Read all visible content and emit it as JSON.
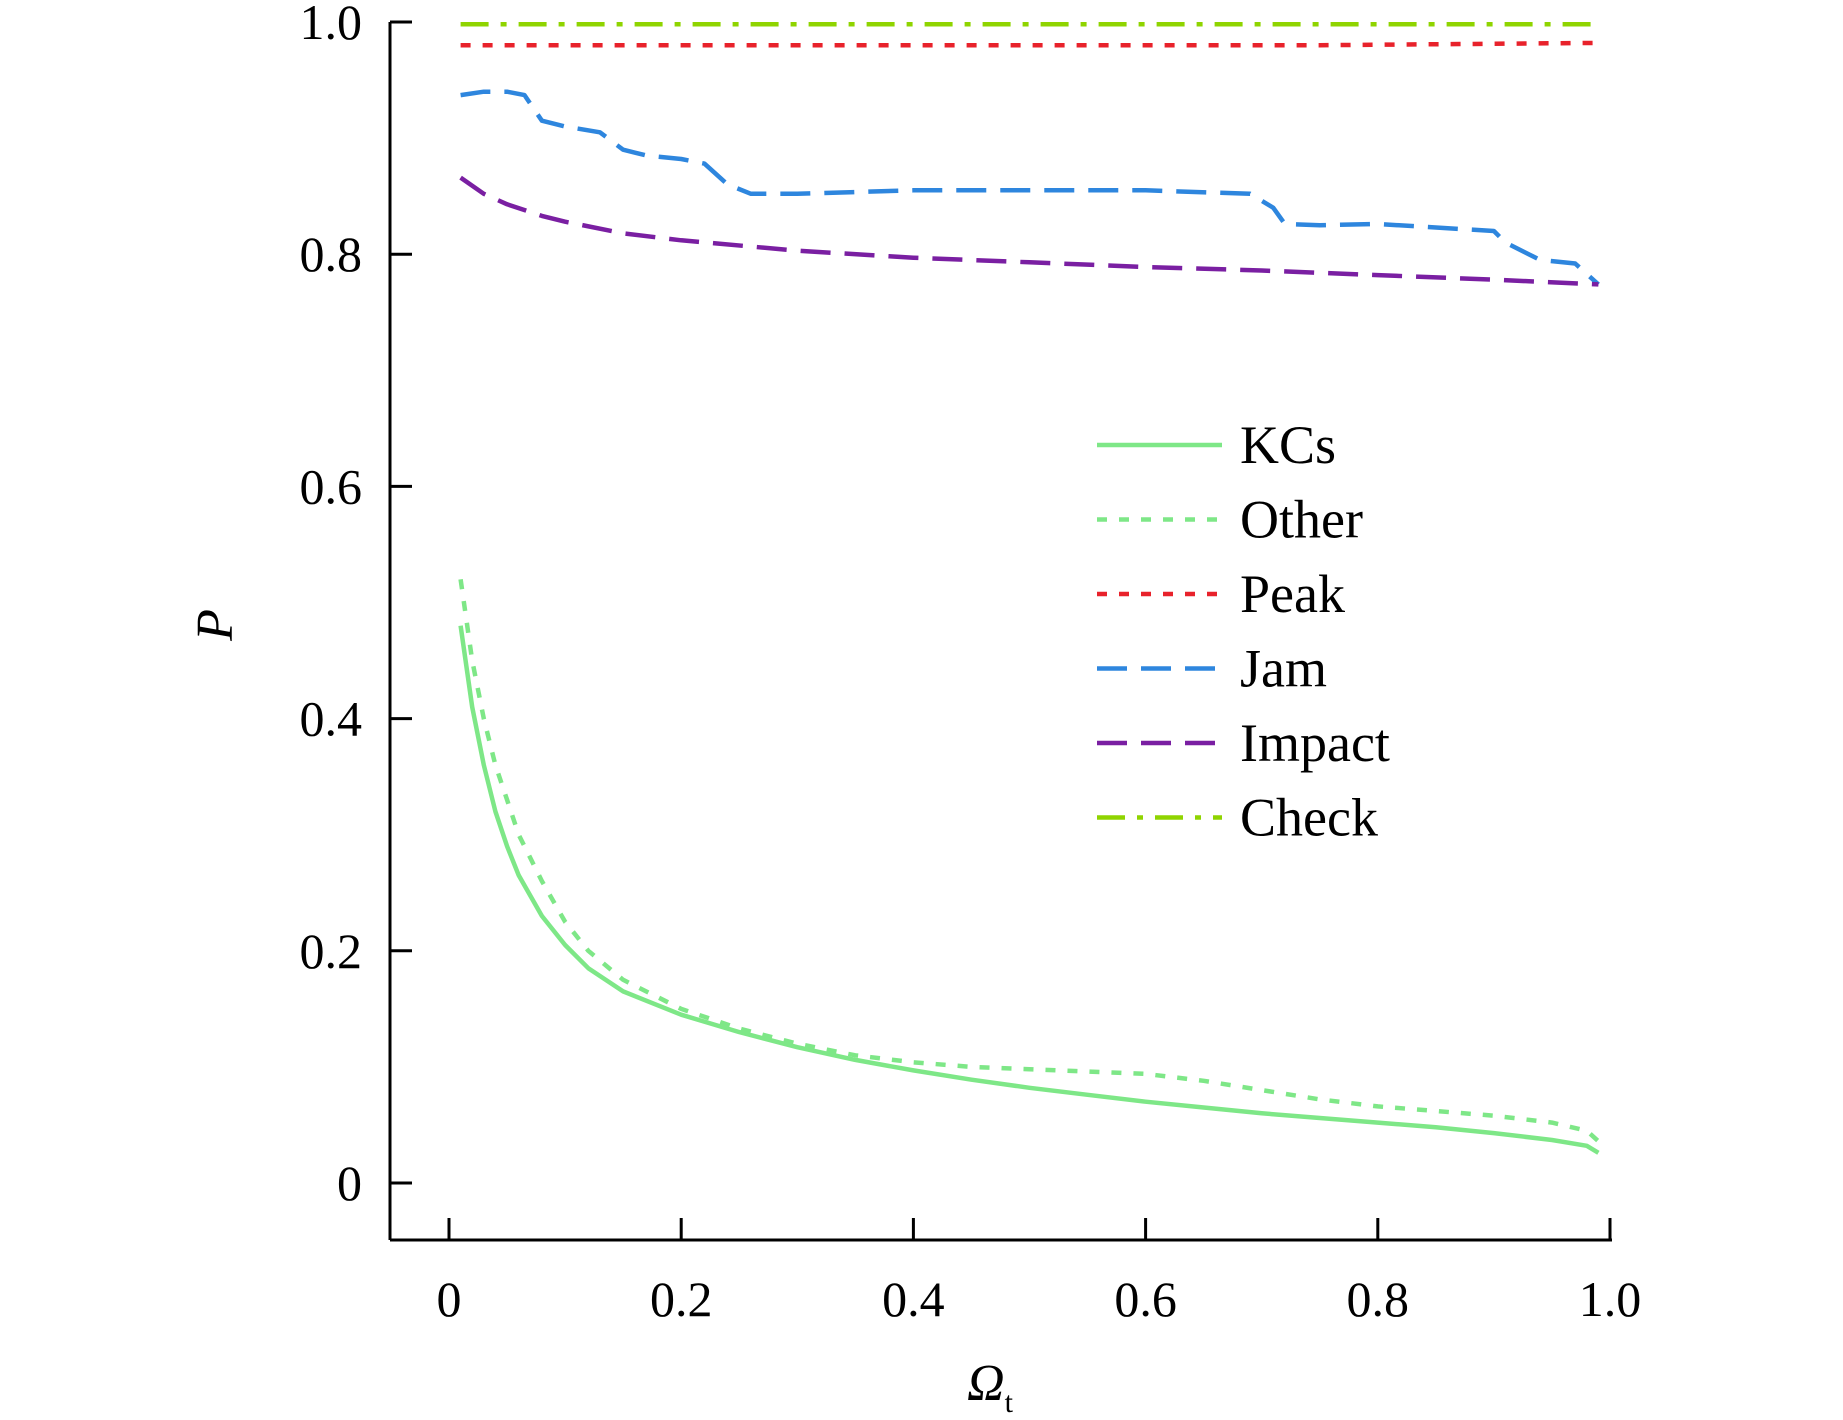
{
  "chart_data": {
    "type": "line",
    "title": "",
    "xlabel": "Ω",
    "xlabel_subscript": "t",
    "ylabel": "P",
    "xlim": [
      -0.05,
      1.0
    ],
    "ylim": [
      -0.05,
      1.0
    ],
    "x_ticks": [
      0,
      0.2,
      0.4,
      0.6,
      0.8,
      1.0
    ],
    "x_tick_labels": [
      "0",
      "0.2",
      "0.4",
      "0.6",
      "0.8",
      "1.0"
    ],
    "y_ticks": [
      0,
      0.2,
      0.4,
      0.6,
      0.8,
      1.0
    ],
    "y_tick_labels": [
      "0",
      "0.2",
      "0.4",
      "0.6",
      "0.8",
      "1.0"
    ],
    "grid": false,
    "legend_position": "center-right",
    "series": [
      {
        "name": "KCs",
        "color": "#7ee787",
        "style": "solid",
        "x": [
          0.01,
          0.02,
          0.03,
          0.04,
          0.05,
          0.06,
          0.08,
          0.1,
          0.12,
          0.15,
          0.2,
          0.25,
          0.3,
          0.35,
          0.4,
          0.45,
          0.5,
          0.55,
          0.6,
          0.65,
          0.7,
          0.75,
          0.8,
          0.85,
          0.9,
          0.95,
          0.98,
          0.99
        ],
        "y": [
          0.48,
          0.41,
          0.36,
          0.32,
          0.29,
          0.265,
          0.23,
          0.205,
          0.185,
          0.165,
          0.145,
          0.13,
          0.117,
          0.106,
          0.097,
          0.089,
          0.082,
          0.076,
          0.07,
          0.065,
          0.06,
          0.056,
          0.052,
          0.048,
          0.043,
          0.037,
          0.032,
          0.026
        ]
      },
      {
        "name": "Other",
        "color": "#7ee787",
        "style": "dotted",
        "x": [
          0.01,
          0.02,
          0.03,
          0.04,
          0.05,
          0.06,
          0.08,
          0.1,
          0.12,
          0.15,
          0.2,
          0.25,
          0.3,
          0.35,
          0.4,
          0.45,
          0.5,
          0.55,
          0.6,
          0.65,
          0.7,
          0.75,
          0.8,
          0.85,
          0.9,
          0.95,
          0.98,
          0.99
        ],
        "y": [
          0.52,
          0.45,
          0.4,
          0.36,
          0.33,
          0.3,
          0.26,
          0.225,
          0.2,
          0.175,
          0.15,
          0.133,
          0.12,
          0.11,
          0.104,
          0.1,
          0.098,
          0.096,
          0.094,
          0.088,
          0.08,
          0.072,
          0.066,
          0.062,
          0.058,
          0.052,
          0.045,
          0.036
        ]
      },
      {
        "name": "Peak",
        "color": "#e8222b",
        "style": "dotted",
        "x": [
          0.01,
          0.25,
          0.5,
          0.75,
          0.99
        ],
        "y": [
          0.98,
          0.98,
          0.98,
          0.98,
          0.982
        ]
      },
      {
        "name": "Jam",
        "color": "#2e86de",
        "style": "dashed",
        "x": [
          0.01,
          0.03,
          0.05,
          0.065,
          0.08,
          0.1,
          0.13,
          0.15,
          0.17,
          0.2,
          0.22,
          0.24,
          0.26,
          0.3,
          0.4,
          0.5,
          0.6,
          0.69,
          0.71,
          0.72,
          0.75,
          0.8,
          0.9,
          0.91,
          0.93,
          0.94,
          0.97,
          0.99
        ],
        "y": [
          0.937,
          0.94,
          0.94,
          0.937,
          0.915,
          0.91,
          0.905,
          0.89,
          0.885,
          0.882,
          0.878,
          0.86,
          0.852,
          0.852,
          0.855,
          0.855,
          0.855,
          0.852,
          0.84,
          0.826,
          0.825,
          0.826,
          0.82,
          0.81,
          0.8,
          0.795,
          0.792,
          0.774
        ]
      },
      {
        "name": "Impact",
        "color": "#7a1fa2",
        "style": "dashed",
        "x": [
          0.01,
          0.03,
          0.05,
          0.08,
          0.1,
          0.15,
          0.2,
          0.3,
          0.4,
          0.5,
          0.6,
          0.7,
          0.8,
          0.9,
          0.99
        ],
        "y": [
          0.866,
          0.852,
          0.843,
          0.833,
          0.828,
          0.818,
          0.812,
          0.803,
          0.797,
          0.793,
          0.789,
          0.786,
          0.782,
          0.778,
          0.774
        ]
      },
      {
        "name": "Check",
        "color": "#8fd400",
        "style": "dashdot",
        "x": [
          0.01,
          0.25,
          0.5,
          0.75,
          0.99
        ],
        "y": [
          0.998,
          0.998,
          0.998,
          0.998,
          0.998
        ]
      }
    ]
  }
}
